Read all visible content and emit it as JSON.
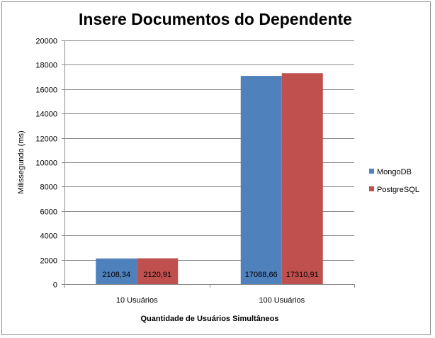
{
  "chart_data": {
    "type": "bar",
    "title": "Insere Documentos do Dependente",
    "xlabel": "Quantidade de Usuários Simultâneos",
    "ylabel": "Milissegundo (ms)",
    "categories": [
      "10 Usuários",
      "100 Usuários"
    ],
    "series": [
      {
        "name": "MongoDB",
        "values": [
          2108.34,
          17088.66
        ],
        "labels": [
          "2108,34",
          "17088,66"
        ],
        "color": "#4f81bd"
      },
      {
        "name": "PostgreSQL",
        "values": [
          2120.91,
          17310.91
        ],
        "labels": [
          "2120,91",
          "17310,91"
        ],
        "color": "#c0504d"
      }
    ],
    "ylim": [
      0,
      20000
    ],
    "yticks": [
      0,
      2000,
      4000,
      6000,
      8000,
      10000,
      12000,
      14000,
      16000,
      18000,
      20000
    ],
    "grid": true,
    "legend_position": "right"
  }
}
